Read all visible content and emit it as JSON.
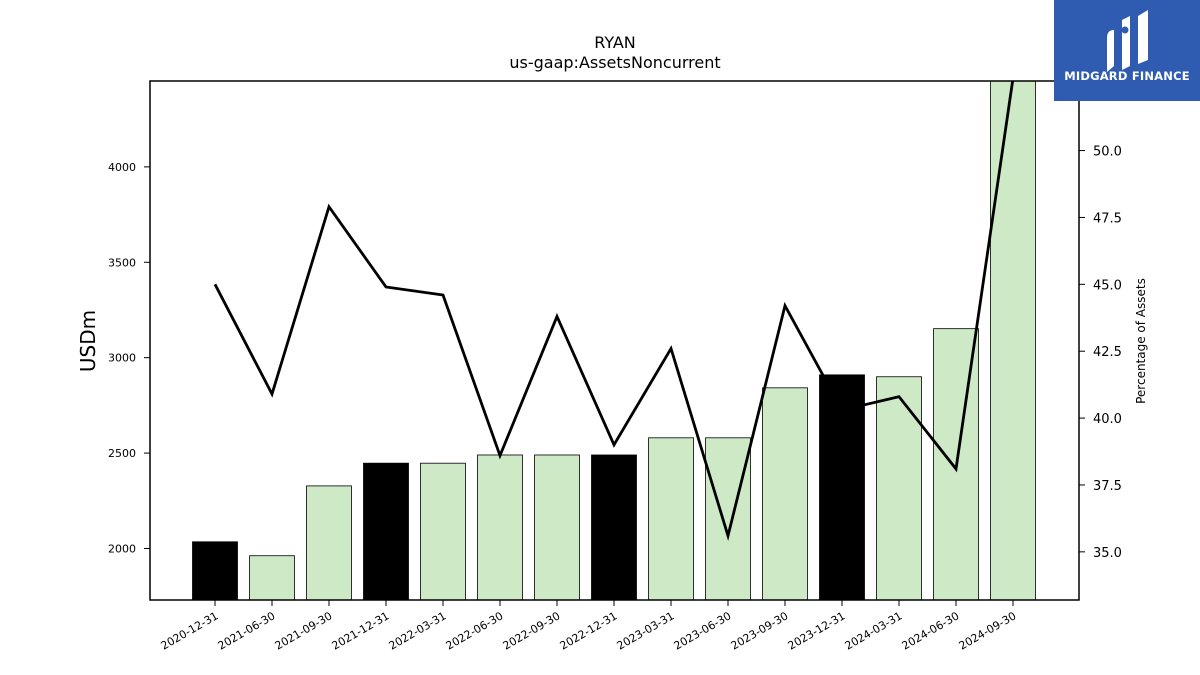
{
  "chart_data": {
    "type": "bar",
    "title": "RYAN",
    "subtitle": "us-gaap:AssetsNoncurrent",
    "ylabel": "USDm",
    "y2label": "Percentage of Assets",
    "categories": [
      "2020-12-31",
      "2021-06-30",
      "2021-09-30",
      "2021-12-31",
      "2022-03-31",
      "2022-06-30",
      "2022-09-30",
      "2022-12-31",
      "2023-03-31",
      "2023-06-30",
      "2023-09-30",
      "2023-12-31",
      "2024-03-31",
      "2024-06-30",
      "2024-09-30"
    ],
    "series": [
      {
        "type": "bar",
        "axis": "left",
        "values": [
          2035,
          1962,
          2328,
          2447,
          2447,
          2490,
          2490,
          2490,
          2580,
          2580,
          2842,
          2910,
          2900,
          3152,
          4470
        ],
        "highlight": [
          true,
          false,
          false,
          true,
          false,
          false,
          false,
          true,
          false,
          false,
          false,
          true,
          false,
          false,
          false
        ]
      },
      {
        "type": "line",
        "axis": "right",
        "values": [
          45.0,
          40.9,
          47.9,
          44.9,
          44.6,
          38.6,
          43.8,
          39.0,
          42.6,
          35.6,
          44.2,
          40.3,
          40.8,
          38.1,
          52.7
        ]
      }
    ],
    "yticks": [
      2000,
      2500,
      3000,
      3500,
      4000
    ],
    "y2ticks": [
      "35.0",
      "37.5",
      "40.0",
      "42.5",
      "45.0",
      "47.5",
      "50.0"
    ],
    "ylim": [
      1730,
      4450
    ],
    "y2lim": [
      33.2,
      52.6
    ],
    "colors": {
      "bar_highlight": "#000000",
      "bar_default": "#cde9c6",
      "bar_edge": "#000000",
      "line": "#000000"
    },
    "grid": false,
    "legend": "none"
  },
  "logo": {
    "text": "MIDGARD FINANCE",
    "color": "#2f5cb0"
  }
}
